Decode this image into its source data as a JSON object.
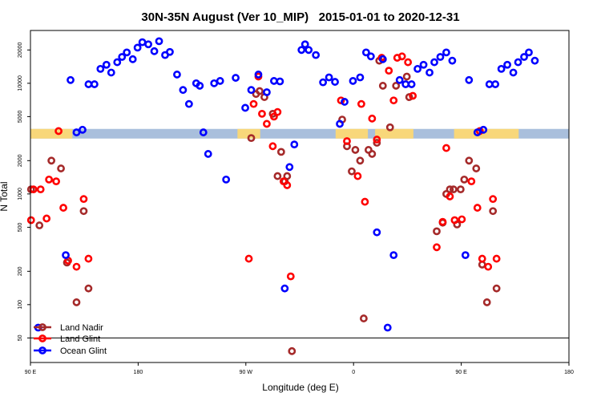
{
  "chart_data": {
    "type": "scatter",
    "title": "30N-35N August (Ver 10_MIP)   2015-01-01 to 2020-12-31",
    "xlabel": "Longitude (deg E)",
    "ylabel": "N Total",
    "xlim": [
      90,
      540
    ],
    "ylim": [
      30,
      30000
    ],
    "y_scale": "log",
    "x_ticks": [
      {
        "value": 90,
        "label": "90 E"
      },
      {
        "value": 180,
        "label": "180"
      },
      {
        "value": 270,
        "label": "90 W"
      },
      {
        "value": 360,
        "label": "0"
      },
      {
        "value": 450,
        "label": "90 E"
      },
      {
        "value": 540,
        "label": "180"
      }
    ],
    "y_ticks": [
      {
        "value": 50,
        "label": "50"
      },
      {
        "value": 100,
        "label": "100"
      },
      {
        "value": 200,
        "label": "200"
      },
      {
        "value": 500,
        "label": "500"
      },
      {
        "value": 1000,
        "label": "1000"
      },
      {
        "value": 2000,
        "label": "2000"
      },
      {
        "value": 5000,
        "label": "5000"
      },
      {
        "value": 10000,
        "label": "10000"
      },
      {
        "value": 20000,
        "label": "20000"
      }
    ],
    "reference_line": 50,
    "land_ocean_strip": {
      "y_value": 3500,
      "land_color": "#f8d77a",
      "ocean_color": "#a9bfdc",
      "land_ranges": [
        [
          90,
          125
        ],
        [
          263,
          282
        ],
        [
          345,
          372
        ],
        [
          378,
          410
        ],
        [
          444,
          498
        ]
      ]
    },
    "legend": {
      "position": "bottom-left"
    },
    "series": [
      {
        "name": "Land Nadir",
        "color": "#a52a2a",
        "points": [
          [
            90.5,
            1100
          ],
          [
            97.5,
            520
          ],
          [
            107.5,
            2000
          ],
          [
            115.5,
            1700
          ],
          [
            120.5,
            240
          ],
          [
            128.5,
            105
          ],
          [
            134.5,
            700
          ],
          [
            138.5,
            140
          ],
          [
            274.5,
            3200
          ],
          [
            278.5,
            8000
          ],
          [
            281.5,
            8500
          ],
          [
            285.5,
            7500
          ],
          [
            292.5,
            5300
          ],
          [
            296.5,
            1450
          ],
          [
            299.5,
            2400
          ],
          [
            302.5,
            1300
          ],
          [
            304.5,
            1450
          ],
          [
            308.5,
            38
          ],
          [
            350.5,
            4700
          ],
          [
            354.5,
            2700
          ],
          [
            358.5,
            1600
          ],
          [
            361.5,
            2500
          ],
          [
            365.5,
            2000
          ],
          [
            368.5,
            75
          ],
          [
            372.5,
            2500
          ],
          [
            375.5,
            2300
          ],
          [
            379.5,
            2900
          ],
          [
            381.5,
            16000
          ],
          [
            384.5,
            9500
          ],
          [
            390.5,
            4000
          ],
          [
            395.5,
            9500
          ],
          [
            404.5,
            11500
          ],
          [
            406.5,
            7500
          ],
          [
            429.5,
            460
          ],
          [
            434.5,
            550
          ],
          [
            437.5,
            1000
          ],
          [
            440.5,
            1100
          ],
          [
            443.5,
            1100
          ],
          [
            446.5,
            530
          ],
          [
            449.5,
            1100
          ],
          [
            452.5,
            1350
          ],
          [
            456.5,
            2000
          ],
          [
            462.5,
            1700
          ],
          [
            467.5,
            230
          ],
          [
            471.5,
            105
          ],
          [
            476.5,
            700
          ],
          [
            479.5,
            140
          ]
        ]
      },
      {
        "name": "Land Glint",
        "color": "#ff0000",
        "points": [
          [
            90.5,
            580
          ],
          [
            92.5,
            1100
          ],
          [
            98.5,
            1100
          ],
          [
            103.5,
            600
          ],
          [
            105.5,
            1350
          ],
          [
            111.5,
            1300
          ],
          [
            113.5,
            3700
          ],
          [
            117.5,
            750
          ],
          [
            121.5,
            250
          ],
          [
            128.5,
            220
          ],
          [
            134.5,
            900
          ],
          [
            138.5,
            260
          ],
          [
            272.5,
            260
          ],
          [
            276.5,
            6500
          ],
          [
            280.5,
            11500
          ],
          [
            283.5,
            5300
          ],
          [
            287.5,
            4300
          ],
          [
            292.5,
            2700
          ],
          [
            293.5,
            5000
          ],
          [
            296.5,
            5500
          ],
          [
            301.5,
            1300
          ],
          [
            304.5,
            1200
          ],
          [
            307.5,
            180
          ],
          [
            349.5,
            7000
          ],
          [
            354.5,
            3000
          ],
          [
            363.5,
            1450
          ],
          [
            366.5,
            6500
          ],
          [
            369.5,
            850
          ],
          [
            375.5,
            4800
          ],
          [
            379.5,
            3100
          ],
          [
            383.5,
            17000
          ],
          [
            389.5,
            13000
          ],
          [
            393.5,
            7000
          ],
          [
            396.5,
            17000
          ],
          [
            400.5,
            17500
          ],
          [
            405.5,
            15500
          ],
          [
            409.5,
            7700
          ],
          [
            429.5,
            330
          ],
          [
            434.5,
            560
          ],
          [
            437.5,
            2600
          ],
          [
            440.5,
            950
          ],
          [
            444.5,
            580
          ],
          [
            450.5,
            590
          ],
          [
            458.5,
            1300
          ],
          [
            463.5,
            750
          ],
          [
            465.5,
            3700
          ],
          [
            467.5,
            260
          ],
          [
            472.5,
            220
          ],
          [
            476.5,
            900
          ],
          [
            479.5,
            260
          ]
        ]
      },
      {
        "name": "Ocean Glint",
        "color": "#0000ff",
        "points": [
          [
            96.5,
            62
          ],
          [
            119.5,
            280
          ],
          [
            123.5,
            10700
          ],
          [
            128.5,
            3600
          ],
          [
            133.5,
            3800
          ],
          [
            138.5,
            9800
          ],
          [
            143.5,
            9800
          ],
          [
            148.5,
            13500
          ],
          [
            153.5,
            14700
          ],
          [
            157.5,
            12500
          ],
          [
            162.5,
            15500
          ],
          [
            166.5,
            17300
          ],
          [
            170.5,
            19000
          ],
          [
            175.5,
            16500
          ],
          [
            179.5,
            21000
          ],
          [
            183.5,
            23500
          ],
          [
            188.5,
            22500
          ],
          [
            193.5,
            19500
          ],
          [
            197.5,
            24000
          ],
          [
            202.5,
            18000
          ],
          [
            206.5,
            19200
          ],
          [
            212.5,
            12000
          ],
          [
            217.5,
            8700
          ],
          [
            222.5,
            6500
          ],
          [
            228.5,
            10000
          ],
          [
            231.5,
            9500
          ],
          [
            234.5,
            3600
          ],
          [
            238.5,
            2300
          ],
          [
            243.5,
            10000
          ],
          [
            248.5,
            10500
          ],
          [
            253.5,
            1350
          ],
          [
            261.5,
            11200
          ],
          [
            269.5,
            6000
          ],
          [
            274.5,
            8700
          ],
          [
            280.5,
            12000
          ],
          [
            287.5,
            8300
          ],
          [
            293.5,
            10500
          ],
          [
            298.5,
            10400
          ],
          [
            302.5,
            140
          ],
          [
            306.5,
            1750
          ],
          [
            310.5,
            2800
          ],
          [
            316.5,
            20000
          ],
          [
            319.5,
            22500
          ],
          [
            322.5,
            20000
          ],
          [
            328.5,
            18000
          ],
          [
            334.5,
            10200
          ],
          [
            339.5,
            11300
          ],
          [
            344.5,
            10300
          ],
          [
            348.5,
            4300
          ],
          [
            352.5,
            6800
          ],
          [
            359.5,
            10500
          ],
          [
            365.5,
            11300
          ],
          [
            370.5,
            19000
          ],
          [
            374.5,
            17500
          ],
          [
            379.5,
            450
          ],
          [
            384.5,
            16500
          ],
          [
            388.5,
            62
          ],
          [
            393.5,
            280
          ],
          [
            398.5,
            10700
          ],
          [
            403.5,
            9800
          ],
          [
            408.5,
            9800
          ],
          [
            413.5,
            13500
          ],
          [
            418.5,
            14700
          ],
          [
            423.5,
            12500
          ],
          [
            427.5,
            15500
          ],
          [
            432.5,
            17300
          ],
          [
            437.5,
            19000
          ],
          [
            442.5,
            16000
          ],
          [
            453.5,
            280
          ],
          [
            456.5,
            10700
          ],
          [
            463.5,
            3600
          ],
          [
            468.5,
            3800
          ],
          [
            473.5,
            9800
          ],
          [
            478.5,
            9800
          ],
          [
            483.5,
            13500
          ],
          [
            488.5,
            14700
          ],
          [
            493.5,
            12500
          ],
          [
            497.5,
            15500
          ],
          [
            502.5,
            17300
          ],
          [
            506.5,
            19000
          ],
          [
            511.5,
            16000
          ]
        ]
      }
    ]
  }
}
